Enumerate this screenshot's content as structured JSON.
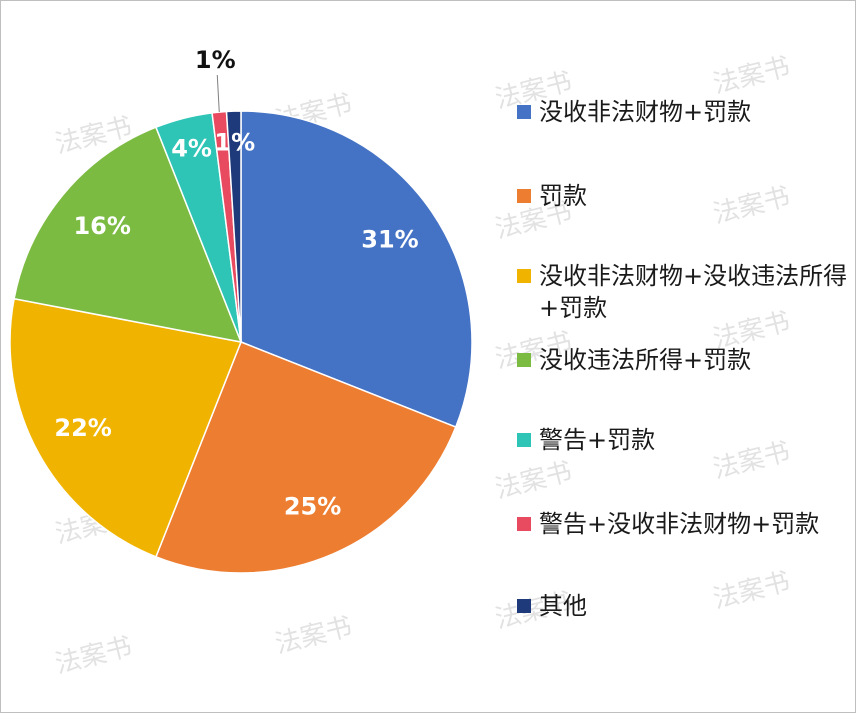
{
  "watermark_text": "法案书",
  "chart_data": {
    "type": "pie",
    "title": "",
    "start_angle_deg": 0,
    "direction": "clockwise",
    "legend_position": "right",
    "slices": [
      {
        "name": "没收非法财物+罚款",
        "value": 31,
        "label": "31%",
        "color": "#4472C4",
        "label_color": "#ffffff"
      },
      {
        "name": "罚款",
        "value": 25,
        "label": "25%",
        "color": "#ED7D31",
        "label_color": "#ffffff"
      },
      {
        "name": "没收非法财物+没收违法所得+罚款",
        "value": 22,
        "label": "22%",
        "color": "#F0B400",
        "label_color": "#ffffff"
      },
      {
        "name": "没收违法所得+罚款",
        "value": 16,
        "label": "16%",
        "color": "#7CBB42",
        "label_color": "#ffffff"
      },
      {
        "name": "警告+罚款",
        "value": 4,
        "label": "4%",
        "color": "#2EC4B6",
        "label_color": "#ffffff"
      },
      {
        "name": "警告+没收非法财物+罚款",
        "value": 1,
        "label": "1%",
        "color": "#E84A5F",
        "label_color": "#111111"
      },
      {
        "name": "其他",
        "value": 1,
        "label": "1%",
        "color": "#1F3A7A",
        "label_color": "#ffffff"
      }
    ]
  }
}
